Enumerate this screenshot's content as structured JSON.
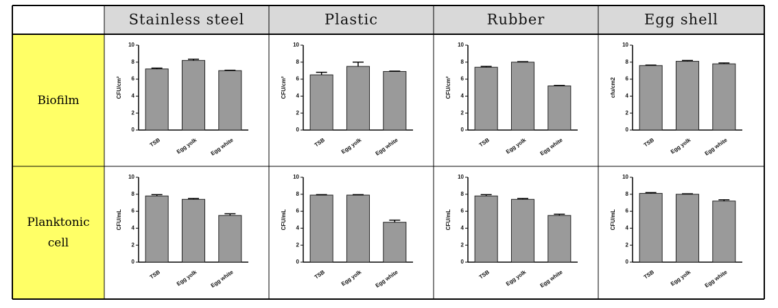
{
  "table": {
    "columns": [
      "Stainless steel",
      "Plastic",
      "Rubber",
      "Egg shell"
    ],
    "rows": [
      "Biofilm",
      "Planktonic cell"
    ]
  },
  "chart_data": [
    {
      "type": "bar",
      "ylabel": "CFU/cm²",
      "categories": [
        "TSB",
        "Egg yolk",
        "Egg white"
      ],
      "values": [
        7.2,
        8.2,
        7.0
      ],
      "errors": [
        0.1,
        0.15,
        0.05
      ],
      "color": "#9a9a9a",
      "ylim": [
        0,
        10
      ],
      "yticks": [
        0,
        2,
        4,
        6,
        8,
        10
      ]
    },
    {
      "type": "bar",
      "ylabel": "CFU/cm²",
      "categories": [
        "TSB",
        "Egg yolk",
        "Egg white"
      ],
      "values": [
        6.5,
        7.5,
        6.9
      ],
      "errors": [
        0.3,
        0.5,
        0.05
      ],
      "color": "#9a9a9a",
      "ylim": [
        0,
        10
      ],
      "yticks": [
        0,
        2,
        4,
        6,
        8,
        10
      ]
    },
    {
      "type": "bar",
      "ylabel": "CFU/cm²",
      "categories": [
        "TSB",
        "Egg yolk",
        "Egg white"
      ],
      "values": [
        7.4,
        8.0,
        5.2
      ],
      "errors": [
        0.1,
        0.05,
        0.05
      ],
      "color": "#9a9a9a",
      "ylim": [
        0,
        10
      ],
      "yticks": [
        0,
        2,
        4,
        6,
        8,
        10
      ]
    },
    {
      "type": "bar",
      "ylabel": "cfu/cm2",
      "categories": [
        "TSB",
        "Egg yolk",
        "Egg white"
      ],
      "values": [
        7.6,
        8.1,
        7.8
      ],
      "errors": [
        0.05,
        0.1,
        0.1
      ],
      "color": "#9a9a9a",
      "ylim": [
        0,
        10
      ],
      "yticks": [
        0,
        2,
        4,
        6,
        8,
        10
      ]
    },
    {
      "type": "bar",
      "ylabel": "CFU/mL",
      "categories": [
        "TSB",
        "Egg yolk",
        "Egg white"
      ],
      "values": [
        7.8,
        7.4,
        5.5
      ],
      "errors": [
        0.15,
        0.1,
        0.2
      ],
      "color": "#9a9a9a",
      "ylim": [
        0,
        10
      ],
      "yticks": [
        0,
        2,
        4,
        6,
        8,
        10
      ]
    },
    {
      "type": "bar",
      "ylabel": "CFU/mL",
      "categories": [
        "TSB",
        "Egg yolk",
        "Egg white"
      ],
      "values": [
        7.9,
        7.9,
        4.7
      ],
      "errors": [
        0.05,
        0.05,
        0.25
      ],
      "color": "#9a9a9a",
      "ylim": [
        0,
        10
      ],
      "yticks": [
        0,
        2,
        4,
        6,
        8,
        10
      ]
    },
    {
      "type": "bar",
      "ylabel": "CFU/mL",
      "categories": [
        "TSB",
        "Egg yolk",
        "Egg white"
      ],
      "values": [
        7.8,
        7.4,
        5.5
      ],
      "errors": [
        0.15,
        0.1,
        0.15
      ],
      "color": "#9a9a9a",
      "ylim": [
        0,
        10
      ],
      "yticks": [
        0,
        2,
        4,
        6,
        8,
        10
      ]
    },
    {
      "type": "bar",
      "ylabel": "CFU/mL",
      "categories": [
        "TSB",
        "Egg yolk",
        "Egg white"
      ],
      "values": [
        8.1,
        8.0,
        7.2
      ],
      "errors": [
        0.1,
        0.05,
        0.15
      ],
      "color": "#9a9a9a",
      "ylim": [
        0,
        10
      ],
      "yticks": [
        0,
        2,
        4,
        6,
        8,
        10
      ]
    }
  ]
}
